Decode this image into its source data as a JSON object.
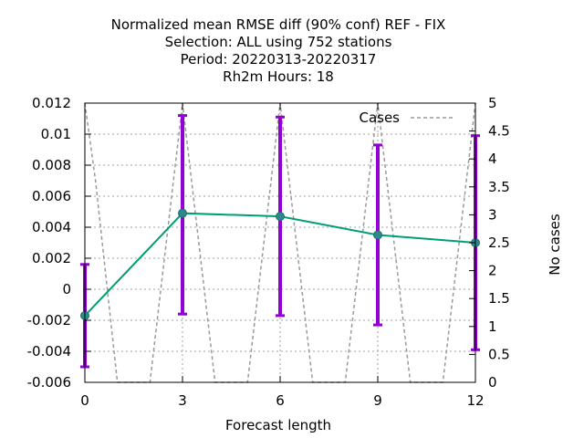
{
  "chart_data": {
    "type": "line",
    "title_lines": [
      "Normalized mean RMSE diff (90% conf) REF - FIX",
      "Selection: ALL using   752 stations",
      "Period: 20220313-20220317",
      "Rh2m   Hours:  18"
    ],
    "xlabel": "Forecast length",
    "y2label": "No cases",
    "xlim": [
      0,
      12
    ],
    "ylim": [
      -0.006,
      0.012
    ],
    "y2lim": [
      0,
      5
    ],
    "xticks": [
      0,
      3,
      6,
      9,
      12
    ],
    "xtick_labels": [
      "0",
      "3",
      "6",
      "9",
      "12"
    ],
    "yticks": [
      -0.006,
      -0.004,
      -0.002,
      0,
      0.002,
      0.004,
      0.006,
      0.008,
      0.01,
      0.012
    ],
    "ytick_labels": [
      "-0.006",
      "-0.004",
      "-0.002",
      "0",
      "0.002",
      "0.004",
      "0.006",
      "0.008",
      "0.01",
      "0.012"
    ],
    "y2ticks": [
      0,
      0.5,
      1,
      1.5,
      2,
      2.5,
      3,
      3.5,
      4,
      4.5,
      5
    ],
    "y2tick_labels": [
      "0",
      "0.5",
      "1",
      "1.5",
      "2",
      "2.5",
      "3",
      "3.5",
      "4",
      "4.5",
      "5"
    ],
    "grid": true,
    "legend_position": "top-right",
    "series": [
      {
        "role": "mean-diff",
        "x": [
          0,
          3,
          6,
          9,
          12
        ],
        "y": [
          -0.0017,
          0.0049,
          0.0047,
          0.0035,
          0.003
        ],
        "err_low": [
          -0.005,
          -0.0016,
          -0.0017,
          -0.0023,
          -0.0039
        ],
        "err_high": [
          0.0016,
          0.0112,
          0.0111,
          0.0093,
          0.0099
        ],
        "line_color": "#009e73",
        "marker_color": "#2a8a8a",
        "errorbar_color": "#9400d3"
      },
      {
        "name": "Cases",
        "axis": "y2",
        "x": [
          0,
          0.33,
          1,
          2,
          3,
          4,
          5,
          6,
          7,
          8,
          9,
          10,
          11,
          12
        ],
        "y": [
          5,
          3.6,
          0,
          0,
          5,
          0,
          0,
          5,
          0,
          0,
          5,
          0,
          0,
          5
        ],
        "line_color": "#9a9a9a",
        "dash": true
      }
    ]
  }
}
